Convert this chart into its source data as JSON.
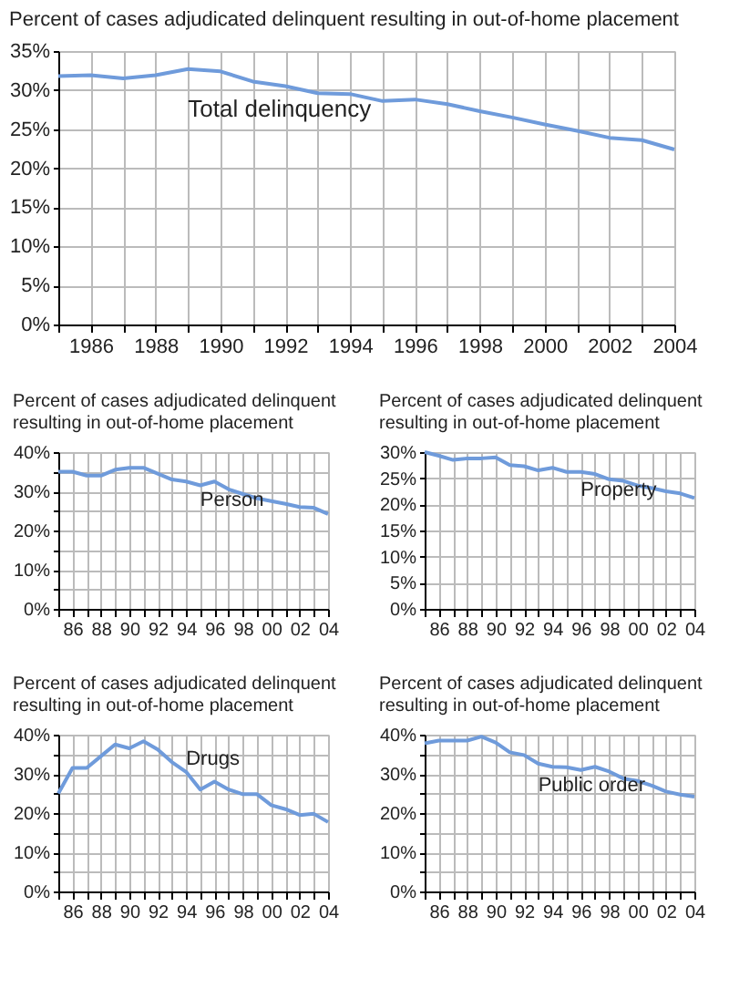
{
  "chart_data": [
    {
      "type": "line",
      "title": "Percent of cases adjudicated delinquent resulting in out-of-home placement",
      "x": [
        1985,
        1986,
        1987,
        1988,
        1989,
        1990,
        1991,
        1992,
        1993,
        1994,
        1995,
        1996,
        1997,
        1998,
        1999,
        2000,
        2001,
        2002,
        2003,
        2004
      ],
      "series": [
        {
          "name": "Total delinquency",
          "color": "#6f9bdb",
          "values": [
            31.8,
            31.9,
            31.5,
            31.9,
            32.7,
            32.4,
            31.1,
            30.5,
            29.6,
            29.5,
            28.6,
            28.8,
            28.2,
            27.3,
            26.5,
            25.6,
            24.8,
            23.9,
            23.6,
            22.4
          ]
        }
      ],
      "xlim": [
        1985,
        2004
      ],
      "xticks": [
        {
          "value": 1985,
          "label": null
        },
        1986,
        {
          "value": 1987,
          "label": null
        },
        1988,
        {
          "value": 1989,
          "label": null
        },
        1990,
        {
          "value": 1991,
          "label": null
        },
        1992,
        {
          "value": 1993,
          "label": null
        },
        1994,
        {
          "value": 1995,
          "label": null
        },
        1996,
        {
          "value": 1997,
          "label": null
        },
        1998,
        {
          "value": 1999,
          "label": null
        },
        2000,
        {
          "value": 2001,
          "label": null
        },
        2002,
        {
          "value": 2003,
          "label": null
        },
        2004
      ],
      "ylim": [
        0,
        35
      ],
      "yticks": [
        {
          "value": 0,
          "label": "0%"
        },
        {
          "value": 5,
          "label": "5%"
        },
        {
          "value": 10,
          "label": "10%"
        },
        {
          "value": 15,
          "label": "15%"
        },
        {
          "value": 20,
          "label": "20%"
        },
        {
          "value": 25,
          "label": "25%"
        },
        {
          "value": 30,
          "label": "30%"
        },
        {
          "value": 35,
          "label": "35%"
        }
      ],
      "grid": true,
      "legend": false
    },
    {
      "type": "line",
      "title": "Percent of cases adjudicated delinquent resulting in out-of-home placement",
      "x": [
        1985,
        1986,
        1987,
        1988,
        1989,
        1990,
        1991,
        1992,
        1993,
        1994,
        1995,
        1996,
        1997,
        1998,
        1999,
        2000,
        2001,
        2002,
        2003,
        2004
      ],
      "series": [
        {
          "name": "Person",
          "color": "#6f9bdb",
          "values": [
            35,
            35,
            34,
            34,
            35.5,
            36,
            36,
            34.5,
            33,
            32.5,
            31.5,
            32.5,
            30.5,
            29.3,
            28.2,
            27.5,
            26.8,
            26,
            25.8,
            24.2
          ]
        }
      ],
      "xlim": [
        1985,
        2004
      ],
      "xticks": [
        {
          "value": 1985,
          "label": null
        },
        {
          "value": 1986,
          "label": "86"
        },
        {
          "value": 1987,
          "label": null
        },
        {
          "value": 1988,
          "label": "88"
        },
        {
          "value": 1989,
          "label": null
        },
        {
          "value": 1990,
          "label": "90"
        },
        {
          "value": 1991,
          "label": null
        },
        {
          "value": 1992,
          "label": "92"
        },
        {
          "value": 1993,
          "label": null
        },
        {
          "value": 1994,
          "label": "94"
        },
        {
          "value": 1995,
          "label": null
        },
        {
          "value": 1996,
          "label": "96"
        },
        {
          "value": 1997,
          "label": null
        },
        {
          "value": 1998,
          "label": "98"
        },
        {
          "value": 1999,
          "label": null
        },
        {
          "value": 2000,
          "label": "00"
        },
        {
          "value": 2001,
          "label": null
        },
        {
          "value": 2002,
          "label": "02"
        },
        {
          "value": 2003,
          "label": null
        },
        {
          "value": 2004,
          "label": "04"
        }
      ],
      "ylim": [
        0,
        40
      ],
      "yticks": [
        {
          "value": 0,
          "label": "0%"
        },
        {
          "value": 5,
          "label": null
        },
        {
          "value": 10,
          "label": "10%"
        },
        {
          "value": 15,
          "label": null
        },
        {
          "value": 20,
          "label": "20%"
        },
        {
          "value": 25,
          "label": null
        },
        {
          "value": 30,
          "label": "30%"
        },
        {
          "value": 35,
          "label": null
        },
        {
          "value": 40,
          "label": "40%"
        }
      ],
      "grid": true,
      "legend": false
    },
    {
      "type": "line",
      "title": "Percent of cases adjudicated delinquent resulting in out-of-home placement",
      "x": [
        1985,
        1986,
        1987,
        1988,
        1989,
        1990,
        1991,
        1992,
        1993,
        1994,
        1995,
        1996,
        1997,
        1998,
        1999,
        2000,
        2001,
        2002,
        2003,
        2004
      ],
      "series": [
        {
          "name": "Property",
          "color": "#6f9bdb",
          "values": [
            30,
            29.3,
            28.5,
            28.8,
            28.8,
            29,
            27.5,
            27.3,
            26.5,
            27,
            26.2,
            26.2,
            25.8,
            24.8,
            24.5,
            23.6,
            23.1,
            22.5,
            22.1,
            21.2
          ]
        }
      ],
      "xlim": [
        1985,
        2004
      ],
      "xticks": [
        {
          "value": 1985,
          "label": null
        },
        {
          "value": 1986,
          "label": "86"
        },
        {
          "value": 1987,
          "label": null
        },
        {
          "value": 1988,
          "label": "88"
        },
        {
          "value": 1989,
          "label": null
        },
        {
          "value": 1990,
          "label": "90"
        },
        {
          "value": 1991,
          "label": null
        },
        {
          "value": 1992,
          "label": "92"
        },
        {
          "value": 1993,
          "label": null
        },
        {
          "value": 1994,
          "label": "94"
        },
        {
          "value": 1995,
          "label": null
        },
        {
          "value": 1996,
          "label": "96"
        },
        {
          "value": 1997,
          "label": null
        },
        {
          "value": 1998,
          "label": "98"
        },
        {
          "value": 1999,
          "label": null
        },
        {
          "value": 2000,
          "label": "00"
        },
        {
          "value": 2001,
          "label": null
        },
        {
          "value": 2002,
          "label": "02"
        },
        {
          "value": 2003,
          "label": null
        },
        {
          "value": 2004,
          "label": "04"
        }
      ],
      "ylim": [
        0,
        30
      ],
      "yticks": [
        {
          "value": 0,
          "label": "0%"
        },
        {
          "value": 5,
          "label": "5%"
        },
        {
          "value": 10,
          "label": "10%"
        },
        {
          "value": 15,
          "label": "15%"
        },
        {
          "value": 20,
          "label": "20%"
        },
        {
          "value": 25,
          "label": "25%"
        },
        {
          "value": 30,
          "label": "30%"
        }
      ],
      "grid": true,
      "legend": false
    },
    {
      "type": "line",
      "title": "Percent of cases adjudicated delinquent resulting in out-of-home placement",
      "x": [
        1985,
        1986,
        1987,
        1988,
        1989,
        1990,
        1991,
        1992,
        1993,
        1994,
        1995,
        1996,
        1997,
        1998,
        1999,
        2000,
        2001,
        2002,
        2003,
        2004
      ],
      "series": [
        {
          "name": "Drugs",
          "color": "#6f9bdb",
          "values": [
            25,
            31.5,
            31.5,
            34.5,
            37.5,
            36.5,
            38.3,
            36.2,
            33,
            30.5,
            26,
            28,
            26,
            24.8,
            24.8,
            22,
            21,
            19.5,
            19.8,
            17.7
          ]
        }
      ],
      "xlim": [
        1985,
        2004
      ],
      "xticks": [
        {
          "value": 1985,
          "label": null
        },
        {
          "value": 1986,
          "label": "86"
        },
        {
          "value": 1987,
          "label": null
        },
        {
          "value": 1988,
          "label": "88"
        },
        {
          "value": 1989,
          "label": null
        },
        {
          "value": 1990,
          "label": "90"
        },
        {
          "value": 1991,
          "label": null
        },
        {
          "value": 1992,
          "label": "92"
        },
        {
          "value": 1993,
          "label": null
        },
        {
          "value": 1994,
          "label": "94"
        },
        {
          "value": 1995,
          "label": null
        },
        {
          "value": 1996,
          "label": "96"
        },
        {
          "value": 1997,
          "label": null
        },
        {
          "value": 1998,
          "label": "98"
        },
        {
          "value": 1999,
          "label": null
        },
        {
          "value": 2000,
          "label": "00"
        },
        {
          "value": 2001,
          "label": null
        },
        {
          "value": 2002,
          "label": "02"
        },
        {
          "value": 2003,
          "label": null
        },
        {
          "value": 2004,
          "label": "04"
        }
      ],
      "ylim": [
        0,
        40
      ],
      "yticks": [
        {
          "value": 0,
          "label": "0%"
        },
        {
          "value": 5,
          "label": null
        },
        {
          "value": 10,
          "label": "10%"
        },
        {
          "value": 15,
          "label": null
        },
        {
          "value": 20,
          "label": "20%"
        },
        {
          "value": 25,
          "label": null
        },
        {
          "value": 30,
          "label": "30%"
        },
        {
          "value": 35,
          "label": null
        },
        {
          "value": 40,
          "label": "40%"
        }
      ],
      "grid": true,
      "legend": false
    },
    {
      "type": "line",
      "title": "Percent of cases adjudicated delinquent resulting in out-of-home placement",
      "x": [
        1985,
        1986,
        1987,
        1988,
        1989,
        1990,
        1991,
        1992,
        1993,
        1994,
        1995,
        1996,
        1997,
        1998,
        1999,
        2000,
        2001,
        2002,
        2003,
        2004
      ],
      "series": [
        {
          "name": "Public order",
          "color": "#6f9bdb",
          "values": [
            37.8,
            38.5,
            38.5,
            38.5,
            39.5,
            38,
            35.5,
            34.8,
            32.6,
            31.8,
            31.7,
            31,
            31.8,
            30.6,
            28.8,
            28.2,
            27,
            25.5,
            24.7,
            24.2
          ]
        }
      ],
      "xlim": [
        1985,
        2004
      ],
      "xticks": [
        {
          "value": 1985,
          "label": null
        },
        {
          "value": 1986,
          "label": "86"
        },
        {
          "value": 1987,
          "label": null
        },
        {
          "value": 1988,
          "label": "88"
        },
        {
          "value": 1989,
          "label": null
        },
        {
          "value": 1990,
          "label": "90"
        },
        {
          "value": 1991,
          "label": null
        },
        {
          "value": 1992,
          "label": "92"
        },
        {
          "value": 1993,
          "label": null
        },
        {
          "value": 1994,
          "label": "94"
        },
        {
          "value": 1995,
          "label": null
        },
        {
          "value": 1996,
          "label": "96"
        },
        {
          "value": 1997,
          "label": null
        },
        {
          "value": 1998,
          "label": "98"
        },
        {
          "value": 1999,
          "label": null
        },
        {
          "value": 2000,
          "label": "00"
        },
        {
          "value": 2001,
          "label": null
        },
        {
          "value": 2002,
          "label": "02"
        },
        {
          "value": 2003,
          "label": null
        },
        {
          "value": 2004,
          "label": "04"
        }
      ],
      "ylim": [
        0,
        40
      ],
      "yticks": [
        {
          "value": 0,
          "label": "0%"
        },
        {
          "value": 5,
          "label": null
        },
        {
          "value": 10,
          "label": "10%"
        },
        {
          "value": 15,
          "label": null
        },
        {
          "value": 20,
          "label": "20%"
        },
        {
          "value": 25,
          "label": null
        },
        {
          "value": 30,
          "label": "30%"
        },
        {
          "value": 35,
          "label": null
        },
        {
          "value": 40,
          "label": "40%"
        }
      ],
      "grid": true,
      "legend": false
    }
  ]
}
